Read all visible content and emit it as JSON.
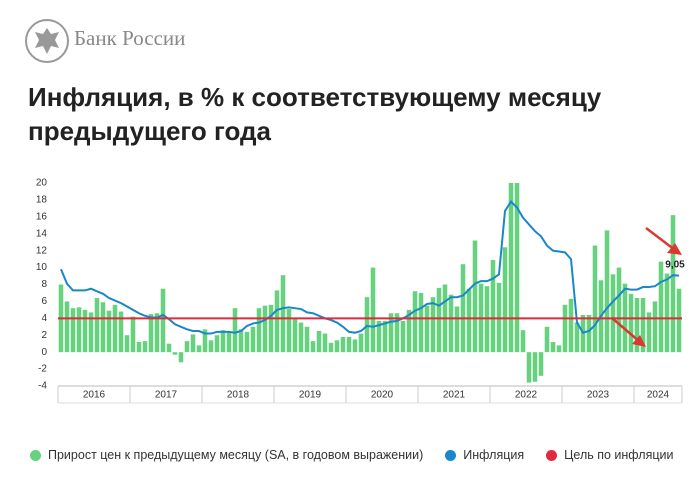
{
  "header": {
    "brand": "Банк России"
  },
  "chart_data": {
    "type": "bar",
    "title": "Инфляция, в % к соответствующему месяцу предыдущего года",
    "categories": [
      "2016",
      null,
      null,
      null,
      null,
      null,
      null,
      null,
      null,
      null,
      null,
      null,
      "2017",
      null,
      null,
      null,
      null,
      null,
      null,
      null,
      null,
      null,
      null,
      null,
      "2018",
      null,
      null,
      null,
      null,
      null,
      null,
      null,
      null,
      null,
      null,
      null,
      "2019",
      null,
      null,
      null,
      null,
      null,
      null,
      null,
      null,
      null,
      null,
      null,
      "2020",
      null,
      null,
      null,
      null,
      null,
      null,
      null,
      null,
      null,
      null,
      null,
      "2021",
      null,
      null,
      null,
      null,
      null,
      null,
      null,
      null,
      null,
      null,
      null,
      "2022",
      null,
      null,
      null,
      null,
      null,
      null,
      null,
      null,
      null,
      null,
      null,
      "2023",
      null,
      null,
      null,
      null,
      null,
      null,
      null,
      null,
      null,
      null,
      null,
      "2024",
      null,
      null,
      null,
      null,
      null,
      null,
      null
    ],
    "ylim": [
      -4,
      20
    ],
    "yticks": [
      -4,
      -2,
      0,
      2,
      4,
      6,
      8,
      10,
      12,
      14,
      16,
      18,
      20
    ],
    "grid": false,
    "series": [
      {
        "name": "Прирост цен к предыдущему месяцу (SA, в годовом выражении)",
        "color": "#66d17e",
        "type": "bar",
        "values": [
          8.0,
          6.0,
          5.2,
          5.3,
          5.0,
          4.7,
          6.4,
          5.9,
          4.9,
          5.6,
          4.8,
          2.0,
          4.2,
          1.2,
          1.3,
          4.5,
          4.6,
          7.5,
          1.0,
          -0.3,
          -1.2,
          1.3,
          2.1,
          0.8,
          2.7,
          1.4,
          2.0,
          2.6,
          2.4,
          5.2,
          2.7,
          2.4,
          3.0,
          5.2,
          5.5,
          5.6,
          7.3,
          9.1,
          5.1,
          3.9,
          3.5,
          3.0,
          1.3,
          2.5,
          2.2,
          1.1,
          1.4,
          1.8,
          1.8,
          1.5,
          2.2,
          6.5,
          10.0,
          3.7,
          3.7,
          4.6,
          4.6,
          3.7,
          5.0,
          7.2,
          7.0,
          5.5,
          6.5,
          7.6,
          8.0,
          6.8,
          5.4,
          10.4,
          7.5,
          13.2,
          8.1,
          7.8,
          10.9,
          8.2,
          12.4,
          20.0,
          20.0,
          2.6,
          -3.6,
          -3.5,
          -2.8,
          3.0,
          1.2,
          0.8,
          5.6,
          6.3,
          3.5,
          4.4,
          4.4,
          12.6,
          8.5,
          14.4,
          9.2,
          10.0,
          8.1,
          6.9,
          6.4,
          6.4,
          4.7,
          6.0,
          10.7,
          9.3,
          16.2,
          7.5
        ]
      },
      {
        "name": "Инфляция",
        "color": "#1a87c9",
        "type": "line",
        "values": [
          9.8,
          8.1,
          7.3,
          7.3,
          7.3,
          7.5,
          7.2,
          6.9,
          6.4,
          6.1,
          5.8,
          5.4,
          5.0,
          4.6,
          4.3,
          4.1,
          4.1,
          4.4,
          3.9,
          3.3,
          3.0,
          2.7,
          2.5,
          2.5,
          2.2,
          2.2,
          2.4,
          2.4,
          2.4,
          2.3,
          2.5,
          3.1,
          3.4,
          3.5,
          3.8,
          4.3,
          5.0,
          5.2,
          5.3,
          5.2,
          5.1,
          4.7,
          4.6,
          4.3,
          4.0,
          3.8,
          3.5,
          3.0,
          2.4,
          2.3,
          2.5,
          3.1,
          3.0,
          3.2,
          3.4,
          3.6,
          3.7,
          4.0,
          4.4,
          4.9,
          5.2,
          5.7,
          5.8,
          5.5,
          6.0,
          6.5,
          6.5,
          6.7,
          7.4,
          8.1,
          8.4,
          8.4,
          8.7,
          9.2,
          16.7,
          17.8,
          17.1,
          15.9,
          15.1,
          14.3,
          13.7,
          12.6,
          12.0,
          11.9,
          11.8,
          11.0,
          3.5,
          2.3,
          2.5,
          3.2,
          4.3,
          5.2,
          6.0,
          6.7,
          7.5,
          7.4,
          7.4,
          7.7,
          7.7,
          7.8,
          8.3,
          8.6,
          9.1,
          9.05
        ],
        "value_labels": [
          null,
          null,
          null,
          null,
          null,
          null,
          null,
          null,
          null,
          null,
          null,
          null,
          null,
          null,
          null,
          null,
          null,
          null,
          null,
          null,
          null,
          null,
          null,
          null,
          null,
          null,
          null,
          null,
          null,
          null,
          null,
          null,
          null,
          null,
          null,
          null,
          null,
          null,
          null,
          null,
          null,
          null,
          null,
          null,
          null,
          null,
          null,
          null,
          null,
          null,
          null,
          null,
          null,
          null,
          null,
          null,
          null,
          null,
          null,
          null,
          null,
          null,
          null,
          null,
          null,
          null,
          null,
          null,
          null,
          null,
          null,
          null,
          null,
          null,
          null,
          null,
          null,
          null,
          null,
          null,
          null,
          null,
          null,
          null,
          null,
          null,
          null,
          null,
          null,
          null,
          null,
          null,
          null,
          null,
          null,
          null,
          null,
          null,
          null,
          null,
          null,
          null,
          null,
          "9,05"
        ]
      },
      {
        "name": "Цель по инфляции",
        "color": "#e0293a",
        "type": "hline",
        "value": 4
      }
    ]
  }
}
